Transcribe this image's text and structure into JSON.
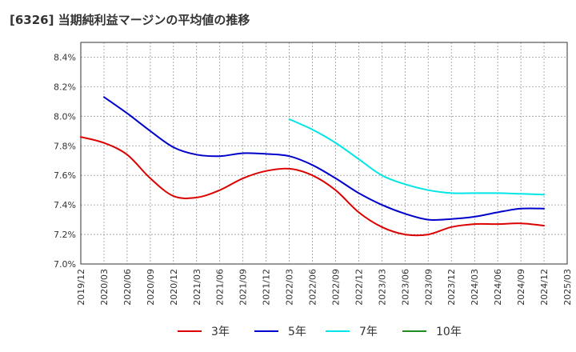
{
  "chart_data": {
    "type": "line",
    "title": "[6326]  当期純利益マージンの平均値の推移",
    "y_ticks": [
      "8.4%",
      "8.2%",
      "8.0%",
      "7.8%",
      "7.6%",
      "7.4%",
      "7.2%",
      "7.0%"
    ],
    "ylim": [
      7.0,
      8.5
    ],
    "x_ticks": [
      "2019/12",
      "2020/03",
      "2020/06",
      "2020/09",
      "2020/12",
      "2021/03",
      "2021/06",
      "2021/09",
      "2021/12",
      "2022/03",
      "2022/06",
      "2022/09",
      "2022/12",
      "2023/03",
      "2023/06",
      "2023/09",
      "2023/12",
      "2024/03",
      "2024/06",
      "2024/09",
      "2024/12",
      "2025/03"
    ],
    "grid": true,
    "legend_position": "bottom",
    "series": [
      {
        "name": "3年",
        "color": "#dd0000",
        "points": [
          [
            "2019/12",
            7.86
          ],
          [
            "2020/03",
            7.82
          ],
          [
            "2020/06",
            7.74
          ],
          [
            "2020/09",
            7.58
          ],
          [
            "2020/12",
            7.46
          ],
          [
            "2021/03",
            7.45
          ],
          [
            "2021/06",
            7.5
          ],
          [
            "2021/09",
            7.58
          ],
          [
            "2021/12",
            7.63
          ],
          [
            "2022/03",
            7.645
          ],
          [
            "2022/06",
            7.6
          ],
          [
            "2022/09",
            7.5
          ],
          [
            "2022/12",
            7.35
          ],
          [
            "2023/03",
            7.25
          ],
          [
            "2023/06",
            7.2
          ],
          [
            "2023/09",
            7.2
          ],
          [
            "2023/12",
            7.25
          ],
          [
            "2024/03",
            7.27
          ],
          [
            "2024/06",
            7.27
          ],
          [
            "2024/09",
            7.275
          ],
          [
            "2024/12",
            7.26
          ]
        ]
      },
      {
        "name": "5年",
        "color": "#0000cc",
        "points": [
          [
            "2020/03",
            8.13
          ],
          [
            "2020/06",
            8.02
          ],
          [
            "2020/09",
            7.9
          ],
          [
            "2020/12",
            7.79
          ],
          [
            "2021/03",
            7.74
          ],
          [
            "2021/06",
            7.73
          ],
          [
            "2021/09",
            7.75
          ],
          [
            "2021/12",
            7.745
          ],
          [
            "2022/03",
            7.73
          ],
          [
            "2022/06",
            7.67
          ],
          [
            "2022/09",
            7.58
          ],
          [
            "2022/12",
            7.48
          ],
          [
            "2023/03",
            7.4
          ],
          [
            "2023/06",
            7.34
          ],
          [
            "2023/09",
            7.3
          ],
          [
            "2023/12",
            7.305
          ],
          [
            "2024/03",
            7.32
          ],
          [
            "2024/06",
            7.35
          ],
          [
            "2024/09",
            7.375
          ],
          [
            "2024/12",
            7.375
          ]
        ]
      },
      {
        "name": "7年",
        "color": "#00e5e5",
        "points": [
          [
            "2022/03",
            7.98
          ],
          [
            "2022/06",
            7.91
          ],
          [
            "2022/09",
            7.82
          ],
          [
            "2022/12",
            7.71
          ],
          [
            "2023/03",
            7.6
          ],
          [
            "2023/06",
            7.54
          ],
          [
            "2023/09",
            7.5
          ],
          [
            "2023/12",
            7.48
          ],
          [
            "2024/03",
            7.48
          ],
          [
            "2024/06",
            7.48
          ],
          [
            "2024/09",
            7.475
          ],
          [
            "2024/12",
            7.47
          ]
        ]
      },
      {
        "name": "10年",
        "color": "#228b22",
        "points": []
      }
    ]
  }
}
